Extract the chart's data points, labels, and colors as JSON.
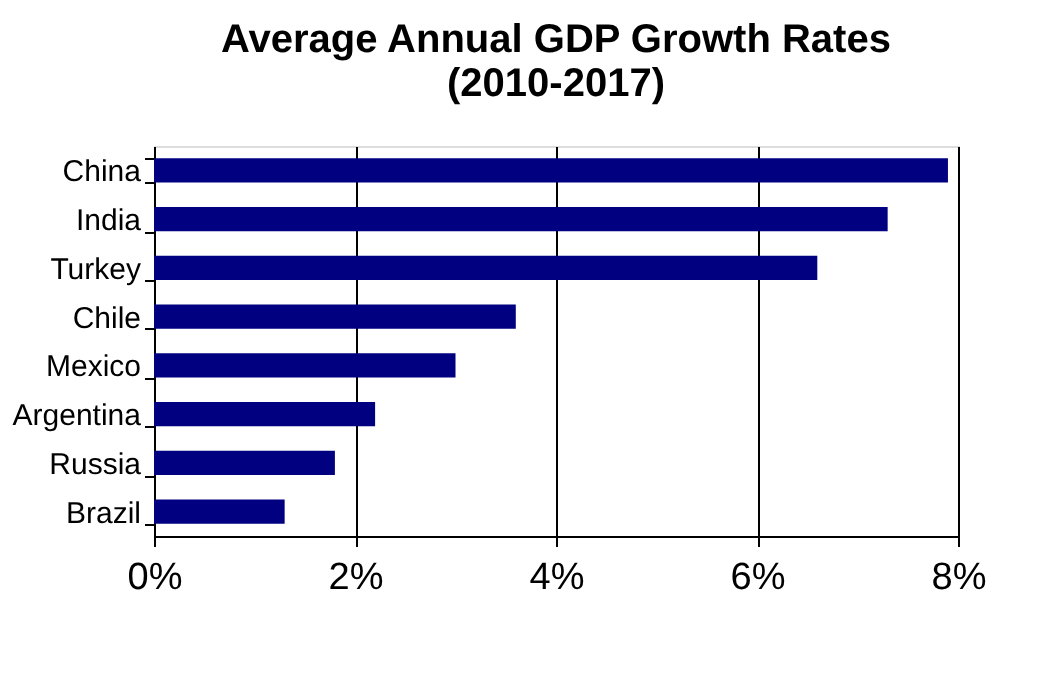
{
  "chart_data": {
    "type": "bar",
    "orientation": "horizontal",
    "title": "Average Annual GDP Growth Rates\n(2010-2017)",
    "categories": [
      "China",
      "India",
      "Turkey",
      "Chile",
      "Mexico",
      "Argentina",
      "Russia",
      "Brazil"
    ],
    "values": [
      7.9,
      7.3,
      6.6,
      3.6,
      3.0,
      2.2,
      1.8,
      1.3
    ],
    "color": "#000080",
    "xlim": [
      0,
      8
    ],
    "xticks": [
      {
        "value": 0,
        "label": "0%"
      },
      {
        "value": 2,
        "label": "2%"
      },
      {
        "value": 4,
        "label": "4%"
      },
      {
        "value": 6,
        "label": "6%"
      },
      {
        "value": 8,
        "label": "8%"
      }
    ],
    "grid": "x"
  }
}
